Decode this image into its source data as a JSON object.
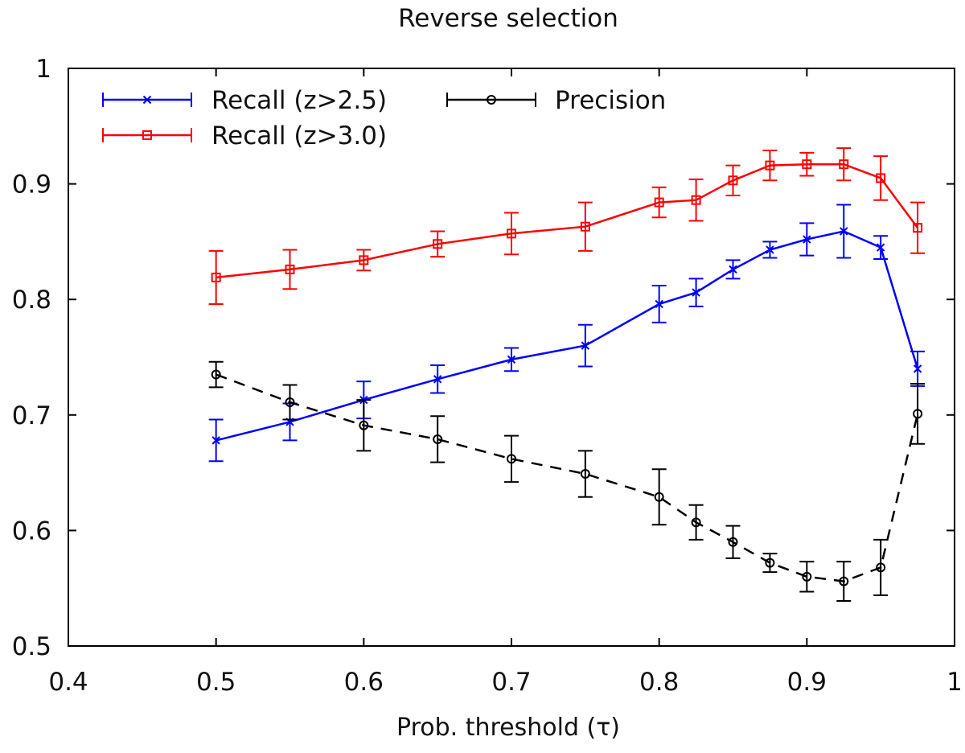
{
  "chart_data": {
    "type": "line",
    "title": "Reverse selection",
    "xlabel": "Prob. threshold (τ)",
    "ylabel": "",
    "xlim": [
      0.4,
      1.0
    ],
    "ylim": [
      0.5,
      1.0
    ],
    "x_ticks": [
      "0.4",
      "0.5",
      "0.6",
      "0.7",
      "0.8",
      "0.9",
      "1"
    ],
    "y_ticks": [
      "0.5",
      "0.6",
      "0.7",
      "0.8",
      "0.9",
      "1"
    ],
    "legend_position": "top-left",
    "series": [
      {
        "name": "Recall (z>2.5)",
        "color": "#0000ff",
        "marker": "x",
        "dash": "solid",
        "x": [
          0.5,
          0.55,
          0.6,
          0.65,
          0.7,
          0.75,
          0.8,
          0.825,
          0.85,
          0.875,
          0.9,
          0.925,
          0.95,
          0.975
        ],
        "y": [
          0.678,
          0.694,
          0.713,
          0.731,
          0.748,
          0.76,
          0.796,
          0.806,
          0.826,
          0.843,
          0.852,
          0.859,
          0.845,
          0.74
        ],
        "err": [
          0.018,
          0.016,
          0.016,
          0.012,
          0.01,
          0.018,
          0.016,
          0.012,
          0.008,
          0.007,
          0.014,
          0.023,
          0.01,
          0.015
        ]
      },
      {
        "name": "Recall (z>3.0)",
        "color": "#ff0000",
        "marker": "square",
        "dash": "solid",
        "x": [
          0.5,
          0.55,
          0.6,
          0.65,
          0.7,
          0.75,
          0.8,
          0.825,
          0.85,
          0.875,
          0.9,
          0.925,
          0.95,
          0.975
        ],
        "y": [
          0.819,
          0.826,
          0.834,
          0.848,
          0.857,
          0.863,
          0.884,
          0.886,
          0.903,
          0.916,
          0.917,
          0.917,
          0.905,
          0.862
        ],
        "err": [
          0.023,
          0.017,
          0.009,
          0.011,
          0.018,
          0.021,
          0.013,
          0.018,
          0.013,
          0.013,
          0.01,
          0.014,
          0.019,
          0.022
        ]
      },
      {
        "name": "Precision",
        "color": "#000000",
        "marker": "circle",
        "dash": "dashed",
        "x": [
          0.5,
          0.55,
          0.6,
          0.65,
          0.7,
          0.75,
          0.8,
          0.825,
          0.85,
          0.875,
          0.9,
          0.925,
          0.95,
          0.975
        ],
        "y": [
          0.735,
          0.711,
          0.691,
          0.679,
          0.662,
          0.649,
          0.629,
          0.607,
          0.59,
          0.572,
          0.56,
          0.556,
          0.568,
          0.701
        ],
        "err": [
          0.011,
          0.015,
          0.022,
          0.02,
          0.02,
          0.02,
          0.024,
          0.015,
          0.014,
          0.008,
          0.013,
          0.017,
          0.024,
          0.026
        ]
      }
    ]
  }
}
